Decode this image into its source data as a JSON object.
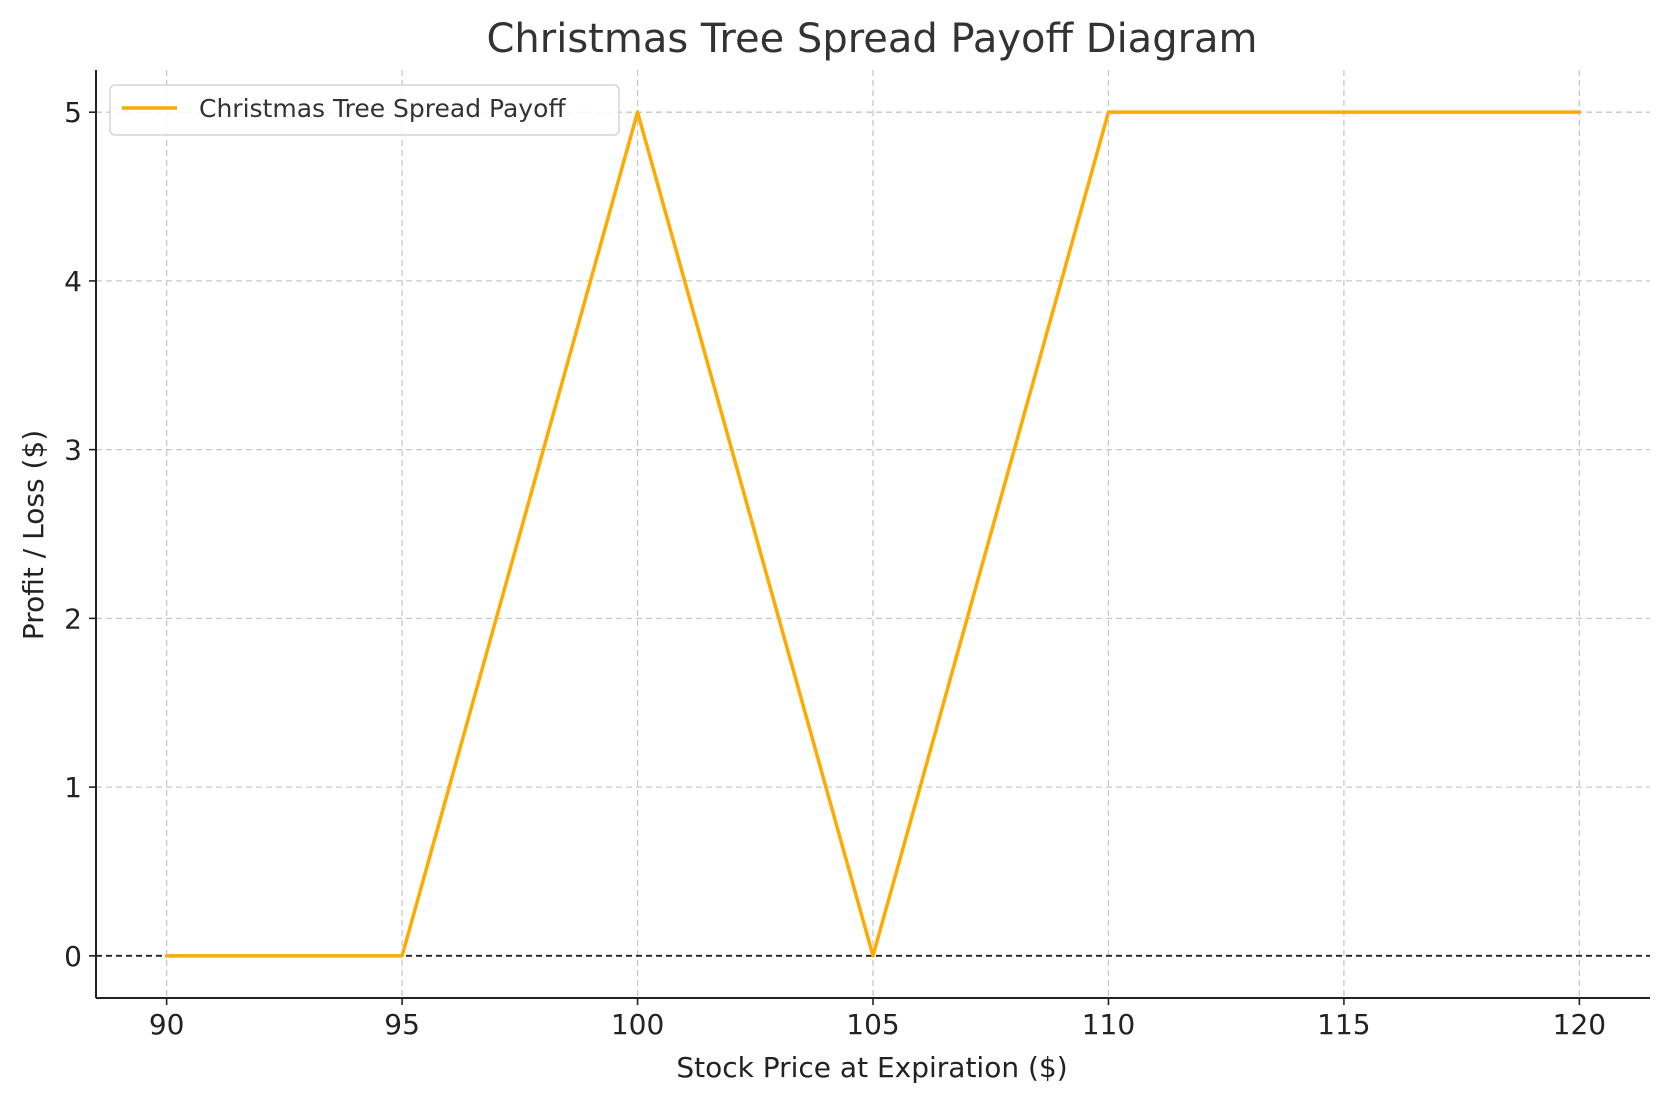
{
  "chart_data": {
    "type": "line",
    "title": "Christmas Tree Spread Payoff Diagram",
    "xlabel": "Stock Price at Expiration ($)",
    "ylabel": "Profit / Loss ($)",
    "xlim": [
      88.5,
      121.5
    ],
    "ylim": [
      -0.25,
      5.25
    ],
    "x_ticks": [
      90,
      95,
      100,
      105,
      110,
      115,
      120
    ],
    "y_ticks": [
      0,
      1,
      2,
      3,
      4,
      5
    ],
    "grid": true,
    "legend_position": "upper-left",
    "reference_line": {
      "y": 0,
      "style": "dashed",
      "color": "#000000"
    },
    "series": [
      {
        "name": "Christmas Tree Spread Payoff",
        "color": "#FFAA00",
        "x": [
          90,
          95,
          100,
          105,
          110,
          120
        ],
        "y": [
          0,
          0,
          5,
          0,
          5,
          5
        ]
      }
    ]
  }
}
